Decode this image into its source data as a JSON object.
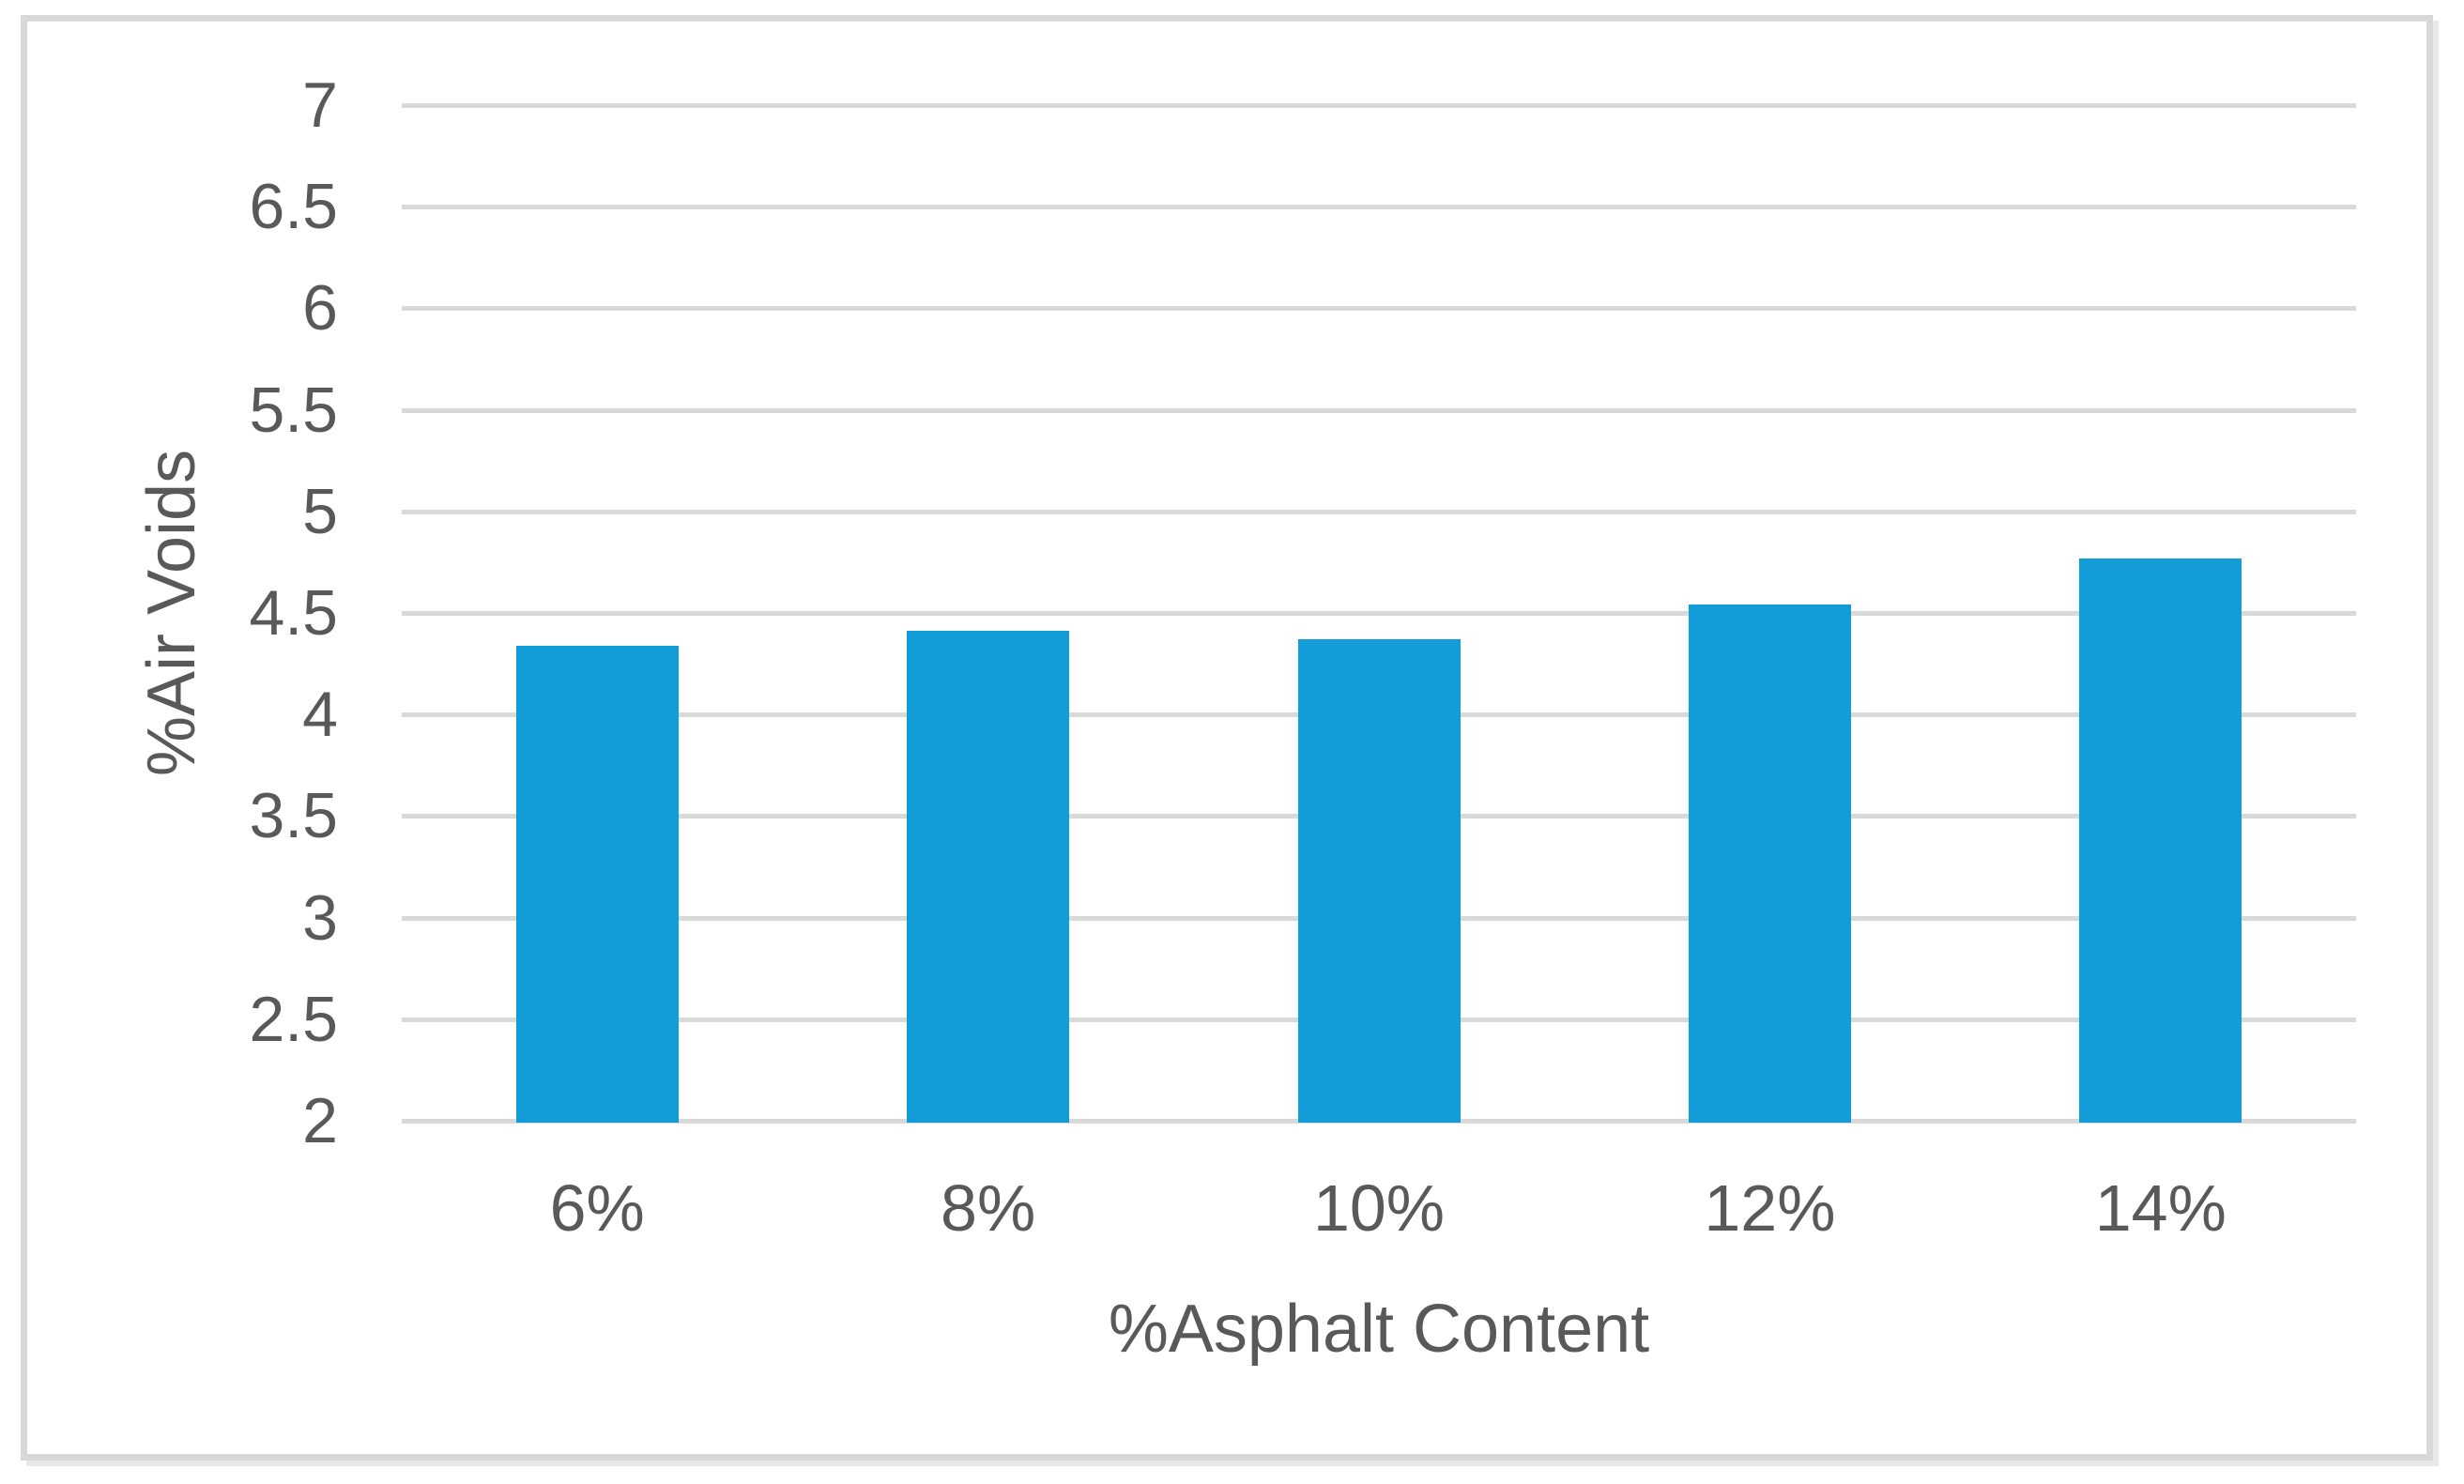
{
  "chart_data": {
    "type": "bar",
    "categories": [
      "6%",
      "8%",
      "10%",
      "12%",
      "14%"
    ],
    "values": [
      4.34,
      4.41,
      4.37,
      4.54,
      4.77
    ],
    "xlabel": "%Asphalt Content",
    "ylabel": "%Air Voids",
    "ylim": [
      2,
      7
    ],
    "ytick_step": 0.5,
    "ytick_labels": [
      "7",
      "6.5",
      "6",
      "5.5",
      "5",
      "4.5",
      "4",
      "3.5",
      "3",
      "2.5",
      "2"
    ],
    "grid": true,
    "legend": false,
    "colors": {
      "bar": "#129DD9",
      "gridline": "#D9D9D9",
      "text": "#595959",
      "frame_border": "#D8D8D8",
      "background": "#FFFFFF"
    }
  }
}
